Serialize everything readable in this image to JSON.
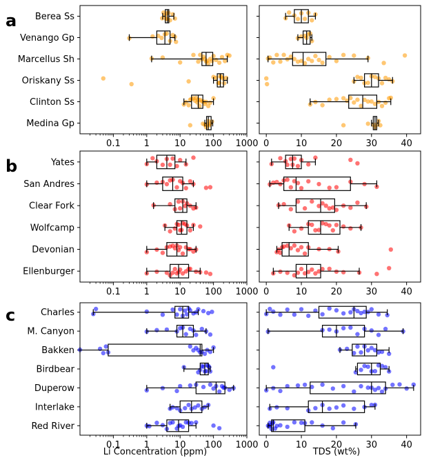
{
  "panel_letters": [
    "a",
    "b",
    "c"
  ],
  "x_ticks_li": [
    "0.1",
    "1",
    "10",
    "100",
    "1000"
  ],
  "x_ticks_tds": [
    "0",
    "10",
    "20",
    "30",
    "40"
  ],
  "xlabel_li": "Li Concentration (ppm)",
  "xlabel_tds": "TDS (wt%)",
  "colors": {
    "a": "#ff9900",
    "b": "#ff0000",
    "c": "#0000ff"
  },
  "chart_data": [
    {
      "type": "box",
      "panel": "a",
      "color": "#ff9900",
      "categories": [
        "Berea Ss",
        "Venango Gp",
        "Marcellus Sh",
        "Oriskany Ss",
        "Clinton Ss",
        "Medina Gp"
      ],
      "li": {
        "xscale": "log",
        "xlim": [
          0.01,
          1000
        ],
        "boxes": [
          {
            "whislo": 3.0,
            "q1": 3.6,
            "med": 4.2,
            "q3": 4.6,
            "whishi": 6.5,
            "points": [
              2.9,
              3.2,
              3.5,
              3.8,
              4.0,
              4.2,
              4.5,
              5.0,
              6.0,
              7.0
            ]
          },
          {
            "whislo": 0.3,
            "q1": 2.0,
            "med": 3.5,
            "q3": 5.0,
            "whishi": 7.0,
            "points": [
              0.3,
              1.5,
              2.2,
              2.8,
              3.5,
              4.0,
              5.0,
              6.0,
              7.0,
              7.5
            ]
          },
          {
            "whislo": 1.4,
            "q1": 45,
            "med": 60,
            "q3": 95,
            "whishi": 260,
            "points": [
              1.4,
              3,
              10,
              25,
              35,
              40,
              45,
              50,
              55,
              60,
              65,
              70,
              80,
              90,
              100,
              120,
              150,
              180,
              220,
              260,
              300
            ]
          },
          {
            "whislo": 100,
            "q1": 130,
            "med": 160,
            "q3": 200,
            "whishi": 260,
            "points": [
              0.05,
              0.35,
              18,
              100,
              120,
              140,
              150,
              160,
              170,
              190,
              210,
              240
            ]
          },
          {
            "whislo": 13,
            "q1": 22,
            "med": 35,
            "q3": 48,
            "whishi": 100,
            "points": [
              13,
              15,
              18,
              20,
              22,
              25,
              28,
              30,
              33,
              35,
              38,
              40,
              45,
              50,
              55,
              60,
              70,
              80,
              100
            ]
          },
          {
            "whislo": 55,
            "q1": 62,
            "med": 70,
            "q3": 85,
            "whishi": 95,
            "points": [
              20,
              48,
              55,
              60,
              65,
              70,
              75,
              80,
              90
            ]
          }
        ]
      },
      "tds": {
        "xscale": "linear",
        "xlim": [
          -2,
          44
        ],
        "boxes": [
          {
            "whislo": 5.5,
            "q1": 8,
            "med": 10,
            "q3": 12,
            "whishi": 14,
            "points": [
              5.5,
              6.5,
              8,
              9,
              10,
              11,
              12,
              13,
              14
            ]
          },
          {
            "whislo": 9,
            "q1": 10.5,
            "med": 11.5,
            "q3": 12.5,
            "whishi": 13,
            "points": [
              9,
              10,
              11,
              11.5,
              12,
              12.5,
              13
            ]
          },
          {
            "whislo": 0.5,
            "q1": 7.5,
            "med": 10.5,
            "q3": 17,
            "whishi": 29,
            "points": [
              0.5,
              1,
              2,
              3,
              4,
              5,
              6,
              7,
              8,
              9,
              10,
              11,
              12,
              13,
              14,
              15,
              16,
              18,
              20,
              22,
              25,
              29,
              33.5,
              39.5
            ]
          },
          {
            "whislo": 25,
            "q1": 28,
            "med": 30,
            "q3": 32,
            "whishi": 36,
            "points": [
              0,
              0.2,
              25,
              26,
              27,
              28,
              29,
              30,
              31,
              32,
              33,
              34,
              35,
              36
            ]
          },
          {
            "whislo": 12.5,
            "q1": 23.5,
            "med": 27.5,
            "q3": 31.5,
            "whishi": 35.5,
            "points": [
              12.5,
              14,
              16,
              18,
              20,
              22,
              23,
              24,
              25,
              26,
              27,
              28,
              29,
              30,
              31,
              32,
              33,
              34,
              35,
              35.5
            ]
          },
          {
            "whislo": 30,
            "q1": 30.5,
            "med": 31,
            "q3": 31.5,
            "whishi": 32,
            "points": [
              22,
              29,
              30.5,
              31,
              31.5,
              32,
              32.5
            ]
          }
        ]
      }
    },
    {
      "type": "box",
      "panel": "b",
      "color": "#ff0000",
      "categories": [
        "Yates",
        "San Andres",
        "Clear Fork",
        "Wolfcamp",
        "Devonian",
        "Ellenburger"
      ],
      "li": {
        "xscale": "log",
        "xlim": [
          0.01,
          1000
        ],
        "boxes": [
          {
            "whislo": 1.0,
            "q1": 2.0,
            "med": 4.0,
            "q3": 7.0,
            "whishi": 15,
            "points": [
              1.0,
              1.5,
              2,
              3,
              4,
              5,
              6,
              8,
              10,
              15,
              25
            ]
          },
          {
            "whislo": 1.0,
            "q1": 3.0,
            "med": 6.0,
            "q3": 12,
            "whishi": 25,
            "points": [
              1.0,
              2,
              3,
              4,
              5,
              6,
              8,
              10,
              12,
              15,
              20,
              25,
              60,
              80
            ]
          },
          {
            "whislo": 1.6,
            "q1": 7,
            "med": 12,
            "q3": 16,
            "whishi": 30,
            "points": [
              1.6,
              5,
              7,
              9,
              10,
              12,
              14,
              16,
              20,
              25,
              30
            ]
          },
          {
            "whislo": 3.5,
            "q1": 8,
            "med": 11,
            "q3": 16,
            "whishi": 25,
            "points": [
              3.5,
              5,
              7,
              8,
              9,
              10,
              11,
              12,
              14,
              16,
              20,
              25,
              40
            ]
          },
          {
            "whislo": 1.0,
            "q1": 4,
            "med": 8,
            "q3": 16,
            "whishi": 30,
            "points": [
              1.0,
              2,
              3,
              4,
              5,
              6,
              7,
              8,
              9,
              10,
              12,
              15,
              18,
              20,
              25,
              30
            ]
          },
          {
            "whislo": 1.0,
            "q1": 5,
            "med": 9,
            "q3": 18,
            "whishi": 40,
            "points": [
              1.0,
              2,
              4,
              5,
              6,
              7,
              8,
              9,
              10,
              12,
              15,
              18,
              20,
              30,
              40,
              60,
              80
            ]
          }
        ]
      },
      "tds": {
        "xscale": "linear",
        "xlim": [
          -2,
          44
        ],
        "boxes": [
          {
            "whislo": 1.5,
            "q1": 5.5,
            "med": 7.5,
            "q3": 10,
            "whishi": 14,
            "points": [
              1.5,
              4,
              5.5,
              6,
              7,
              7.5,
              8,
              9,
              10,
              12,
              14,
              24,
              26
            ]
          },
          {
            "whislo": 1,
            "q1": 5,
            "med": 8.5,
            "q3": 24,
            "whishi": 31.5,
            "points": [
              1,
              2,
              3,
              4,
              5,
              6,
              7,
              8,
              9,
              10,
              12,
              15,
              18,
              20,
              24,
              28,
              31.5
            ]
          },
          {
            "whislo": 3.5,
            "q1": 8.5,
            "med": 15.5,
            "q3": 19.5,
            "whishi": 28.5,
            "points": [
              3.5,
              5,
              7,
              9,
              11,
              13,
              15,
              16,
              17,
              18,
              19,
              20,
              22,
              24,
              26,
              28.5
            ]
          },
          {
            "whislo": 6.5,
            "q1": 12,
            "med": 15.5,
            "q3": 21,
            "whishi": 27,
            "points": [
              6.5,
              8,
              10,
              12,
              13,
              14,
              15,
              16,
              17,
              18,
              19,
              20,
              22,
              24,
              27
            ]
          },
          {
            "whislo": 3,
            "q1": 4.5,
            "med": 6.5,
            "q3": 12,
            "whishi": 20.5,
            "points": [
              3,
              3.5,
              4,
              4.5,
              5,
              6,
              7,
              8,
              9,
              10,
              11,
              12,
              15,
              18,
              20.5,
              35.5
            ]
          },
          {
            "whislo": 2,
            "q1": 8.5,
            "med": 11.5,
            "q3": 15.5,
            "whishi": 26.5,
            "points": [
              2,
              4,
              6,
              8,
              9,
              10,
              11,
              12,
              13,
              14,
              15,
              16,
              18,
              20,
              22,
              26.5,
              31.5,
              35
            ]
          }
        ]
      }
    },
    {
      "type": "box",
      "panel": "c",
      "color": "#0000ff",
      "categories": [
        "Charles",
        "M. Canyon",
        "Bakken",
        "Birdbear",
        "Duperow",
        "Interlake",
        "Red River"
      ],
      "li": {
        "xscale": "log",
        "xlim": [
          0.01,
          1000
        ],
        "boxes": [
          {
            "whislo": 0.025,
            "q1": 7,
            "med": 12,
            "q3": 18,
            "whishi": 35,
            "points": [
              0.025,
              0.03,
              1,
              3,
              6,
              8,
              10,
              12,
              14,
              16,
              18,
              20,
              25,
              30,
              35,
              50,
              70,
              90
            ]
          },
          {
            "whislo": 1.0,
            "q1": 8,
            "med": 12,
            "q3": 25,
            "whishi": 60,
            "points": [
              1.0,
              2,
              4,
              8,
              10,
              12,
              15,
              20,
              25,
              30,
              45,
              60,
              80
            ]
          },
          {
            "whislo": 0.01,
            "q1": 0.07,
            "med": 40,
            "q3": 45,
            "whishi": 100,
            "points": [
              0.01,
              0.04,
              0.05,
              0.06,
              0.07,
              20,
              25,
              30,
              35,
              40,
              45,
              55,
              65,
              80,
              100
            ]
          },
          {
            "whislo": 13,
            "q1": 40,
            "med": 55,
            "q3": 70,
            "whishi": 80,
            "points": [
              13,
              35,
              40,
              45,
              50,
              55,
              60,
              65,
              70,
              75,
              80
            ]
          },
          {
            "whislo": 1.0,
            "q1": 30,
            "med": 120,
            "q3": 220,
            "whishi": 400,
            "points": [
              1.0,
              3,
              8,
              10,
              20,
              30,
              50,
              80,
              100,
              120,
              150,
              180,
              200,
              220,
              300,
              400
            ]
          },
          {
            "whislo": 5,
            "q1": 10,
            "med": 22,
            "q3": 45,
            "whishi": 70,
            "points": [
              5,
              6,
              8,
              10,
              14,
              18,
              22,
              28,
              35,
              45,
              55,
              70
            ]
          },
          {
            "whislo": 1.0,
            "q1": 4,
            "med": 9,
            "q3": 18,
            "whishi": 30,
            "points": [
              1.0,
              1.2,
              2,
              3,
              4,
              5,
              6,
              8,
              9,
              10,
              12,
              15,
              18,
              22,
              30,
              100,
              150
            ]
          }
        ]
      },
      "tds": {
        "xscale": "linear",
        "xlim": [
          -2,
          44
        ],
        "boxes": [
          {
            "whislo": 0,
            "q1": 15,
            "med": 25,
            "q3": 28.5,
            "whishi": 34.5,
            "points": [
              0,
              1,
              2,
              4,
              6,
              8,
              10,
              12,
              14,
              16,
              18,
              20,
              22,
              24,
              25,
              26,
              27,
              28,
              29,
              30,
              32,
              34.5
            ]
          },
          {
            "whislo": 0.5,
            "q1": 16,
            "med": 20,
            "q3": 28,
            "whishi": 39,
            "points": [
              0.5,
              16,
              18,
              20,
              22,
              24,
              26,
              28,
              30,
              32,
              34,
              39
            ]
          },
          {
            "whislo": 21,
            "q1": 24.5,
            "med": 28,
            "q3": 31.5,
            "whishi": 35,
            "points": [
              21,
              23,
              25,
              26,
              27,
              28,
              29,
              30,
              31,
              32,
              33,
              35
            ]
          },
          {
            "whislo": 25.5,
            "q1": 26,
            "med": 30,
            "q3": 32.5,
            "whishi": 35,
            "points": [
              2,
              25.5,
              27,
              28,
              29,
              30,
              31,
              32,
              33,
              34,
              35
            ]
          },
          {
            "whislo": 0,
            "q1": 12.5,
            "med": 30,
            "q3": 34,
            "whishi": 42,
            "points": [
              0,
              2,
              4,
              6,
              9,
              11,
              13,
              16,
              19,
              22,
              25,
              27,
              29,
              30,
              31,
              32,
              33,
              34,
              36,
              38,
              40,
              42
            ]
          },
          {
            "whislo": 1,
            "q1": 12,
            "med": 16,
            "q3": 28,
            "whishi": 31,
            "points": [
              1,
              3,
              6,
              12,
              14,
              16,
              18,
              20,
              22,
              25,
              28,
              30,
              31
            ]
          },
          {
            "whislo": 0.5,
            "q1": 1.5,
            "med": 2,
            "q3": 11,
            "whishi": 25.5,
            "points": [
              0.5,
              0.8,
              1,
              1.2,
              1.5,
              1.8,
              2,
              2.5,
              3,
              4,
              6,
              8,
              10,
              11,
              13,
              16,
              19,
              22,
              25.5
            ]
          }
        ]
      }
    }
  ]
}
